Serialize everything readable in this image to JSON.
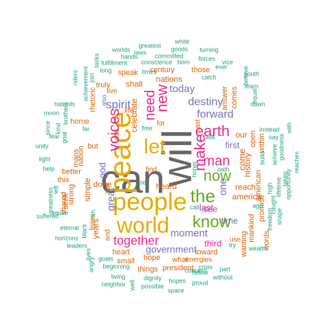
{
  "palette": {
    "green": "#1b9e77",
    "orange": "#d95f02",
    "purple": "#7570b3",
    "pink": "#e7298a",
    "lime": "#66a61e",
    "gold": "#e6ab02",
    "brown": "#a6761d",
    "gray": "#666666"
  },
  "words": [
    {
      "text": "can",
      "color": "gray"
    },
    {
      "text": "will",
      "color": "gray"
    },
    {
      "text": "peace",
      "color": "gold"
    },
    {
      "text": "people",
      "color": "gold"
    },
    {
      "text": "world",
      "color": "gold"
    },
    {
      "text": "let",
      "color": "gold"
    },
    {
      "text": "the",
      "color": "lime"
    },
    {
      "text": "know",
      "color": "lime"
    },
    {
      "text": "now",
      "color": "lime"
    },
    {
      "text": "earth",
      "color": "pink"
    },
    {
      "text": "make",
      "color": "pink"
    },
    {
      "text": "man",
      "color": "pink"
    },
    {
      "text": "voices",
      "color": "pink"
    },
    {
      "text": "new",
      "color": "pink"
    },
    {
      "text": "need",
      "color": "pink"
    },
    {
      "text": "together",
      "color": "pink"
    },
    {
      "text": "spirit",
      "color": "purple"
    },
    {
      "text": "forward",
      "color": "purple"
    },
    {
      "text": "destiny",
      "color": "purple"
    },
    {
      "text": "today",
      "color": "purple"
    },
    {
      "text": "moment",
      "color": "purple"
    },
    {
      "text": "government",
      "color": "purple"
    },
    {
      "text": "great",
      "color": "purple"
    },
    {
      "text": "first",
      "color": "purple"
    },
    {
      "text": "see",
      "color": "purple"
    },
    {
      "text": "time",
      "color": "purple"
    },
    {
      "text": "one",
      "color": "purple"
    },
    {
      "text": "god",
      "color": "purple"
    },
    {
      "text": "last",
      "color": "pink"
    },
    {
      "text": "third",
      "color": "pink"
    },
    {
      "text": "reach",
      "color": "orange"
    },
    {
      "text": "america",
      "color": "orange"
    },
    {
      "text": "come",
      "color": "orange"
    },
    {
      "text": "our",
      "color": "orange"
    },
    {
      "text": "history",
      "color": "orange"
    },
    {
      "text": "nations",
      "color": "orange"
    },
    {
      "text": "celebrate",
      "color": "orange"
    },
    {
      "text": "done",
      "color": "orange"
    },
    {
      "text": "simple",
      "color": "orange"
    },
    {
      "text": "heard",
      "color": "orange"
    },
    {
      "text": "years",
      "color": "orange"
    },
    {
      "text": "shall",
      "color": "orange"
    },
    {
      "text": "life",
      "color": "orange"
    },
    {
      "text": "heart",
      "color": "orange"
    },
    {
      "text": "small",
      "color": "orange"
    },
    {
      "text": "hope",
      "color": "orange"
    },
    {
      "text": "president",
      "color": "orange"
    },
    {
      "text": "things",
      "color": "orange"
    },
    {
      "text": "what",
      "color": "orange"
    },
    {
      "text": "toward",
      "color": "orange"
    },
    {
      "text": "wanting",
      "color": "orange"
    },
    {
      "text": "promise",
      "color": "orange"
    },
    {
      "text": "american",
      "color": "orange"
    },
    {
      "text": "words",
      "color": "orange"
    },
    {
      "text": "mankind",
      "color": "orange"
    },
    {
      "text": "open",
      "color": "orange"
    },
    {
      "text": "within",
      "color": "orange"
    },
    {
      "text": "answer",
      "color": "orange"
    },
    {
      "text": "comes",
      "color": "orange"
    },
    {
      "text": "those",
      "color": "orange"
    },
    {
      "text": "century",
      "color": "orange"
    },
    {
      "text": "speak",
      "color": "orange"
    },
    {
      "text": "truly",
      "color": "orange"
    },
    {
      "text": "live",
      "color": "orange"
    },
    {
      "text": "nation",
      "color": "orange"
    },
    {
      "text": "home",
      "color": "orange"
    },
    {
      "text": "but",
      "color": "orange"
    },
    {
      "text": "better",
      "color": "orange"
    },
    {
      "text": "this",
      "color": "orange"
    },
    {
      "text": "seek",
      "color": "orange"
    },
    {
      "text": "mans",
      "color": "orange"
    },
    {
      "text": "strong",
      "color": "orange"
    },
    {
      "text": "shared",
      "color": "orange"
    },
    {
      "text": "listen",
      "color": "orange"
    },
    {
      "text": "and",
      "color": "orange"
    },
    {
      "text": "for",
      "color": "orange"
    },
    {
      "text": "find",
      "color": "orange"
    },
    {
      "text": "war",
      "color": "orange"
    },
    {
      "text": "rhetoric",
      "color": "orange"
    },
    {
      "text": "past",
      "color": "orange"
    },
    {
      "text": "energies",
      "color": "orange"
    },
    {
      "text": "use",
      "color": "orange"
    },
    {
      "text": "worlds",
      "color": "green"
    },
    {
      "text": "greatest",
      "color": "green"
    },
    {
      "text": "white",
      "color": "green"
    },
    {
      "text": "goods",
      "color": "green"
    },
    {
      "text": "turning",
      "color": "green"
    },
    {
      "text": "riders",
      "color": "green"
    },
    {
      "text": "tasks",
      "color": "green"
    },
    {
      "text": "hands",
      "color": "green"
    },
    {
      "text": "laws",
      "color": "green"
    },
    {
      "text": "committed",
      "color": "green"
    },
    {
      "text": "forces",
      "color": "green"
    },
    {
      "text": "vice",
      "color": "green"
    },
    {
      "text": "join",
      "color": "green"
    },
    {
      "text": "fulfillment",
      "color": "green"
    },
    {
      "text": "conscience",
      "color": "green"
    },
    {
      "text": "born",
      "color": "green"
    },
    {
      "text": "ever",
      "color": "green"
    },
    {
      "text": "achievement",
      "color": "green"
    },
    {
      "text": "long",
      "color": "green"
    },
    {
      "text": "times",
      "color": "green"
    },
    {
      "text": "youth",
      "color": "green"
    },
    {
      "text": "hatreds",
      "color": "green"
    },
    {
      "text": "also",
      "color": "green"
    },
    {
      "text": "catch",
      "color": "green"
    },
    {
      "text": "equal",
      "color": "green"
    },
    {
      "text": "believe",
      "color": "green"
    },
    {
      "text": "learn",
      "color": "green"
    },
    {
      "text": "moon",
      "color": "green"
    },
    {
      "text": "brothers",
      "color": "green"
    },
    {
      "text": "rich",
      "color": "green"
    },
    {
      "text": "far",
      "color": "green"
    },
    {
      "text": "dawn",
      "color": "green"
    },
    {
      "text": "kind",
      "color": "green"
    },
    {
      "text": "since",
      "color": "green"
    },
    {
      "text": "free",
      "color": "green"
    },
    {
      "text": "instead",
      "color": "green"
    },
    {
      "text": "say",
      "color": "green"
    },
    {
      "text": "fear",
      "color": "green"
    },
    {
      "text": "goal",
      "color": "green"
    },
    {
      "text": "build",
      "color": "green"
    },
    {
      "text": "achieve",
      "color": "green"
    },
    {
      "text": "goodness",
      "color": "green"
    },
    {
      "text": "with",
      "color": "green"
    },
    {
      "text": "ask",
      "color": "green"
    },
    {
      "text": "oath",
      "color": "green"
    },
    {
      "text": "light",
      "color": "green"
    },
    {
      "text": "unity",
      "color": "green"
    },
    {
      "text": "help",
      "color": "green"
    },
    {
      "text": "taken",
      "color": "green"
    },
    {
      "text": "reaches",
      "color": "green"
    },
    {
      "text": "lifetime",
      "color": "green"
    },
    {
      "text": "honor",
      "color": "green"
    },
    {
      "text": "caught",
      "color": "green"
    },
    {
      "text": "greatness",
      "color": "green"
    },
    {
      "text": "set",
      "color": "green"
    },
    {
      "text": "high",
      "color": "green"
    },
    {
      "text": "opportunity",
      "color": "green"
    },
    {
      "text": "suffered",
      "color": "green"
    },
    {
      "text": "ago",
      "color": "green"
    },
    {
      "text": "freedom",
      "color": "green"
    },
    {
      "text": "shape",
      "color": "green"
    },
    {
      "text": "call",
      "color": "green"
    },
    {
      "text": "eternal",
      "color": "green"
    },
    {
      "text": "horizons",
      "color": "green"
    },
    {
      "text": "black",
      "color": "green"
    },
    {
      "text": "angry",
      "color": "green"
    },
    {
      "text": "leaders",
      "color": "green"
    },
    {
      "text": "try",
      "color": "green"
    },
    {
      "text": "wealth",
      "color": "green"
    },
    {
      "text": "lives",
      "color": "green"
    },
    {
      "text": "goals",
      "color": "green"
    },
    {
      "text": "beginning",
      "color": "green"
    },
    {
      "text": "living",
      "color": "green"
    },
    {
      "text": "neighbor",
      "color": "green"
    },
    {
      "text": "well",
      "color": "green"
    },
    {
      "text": "dignity",
      "color": "green"
    },
    {
      "text": "possible",
      "color": "green"
    },
    {
      "text": "concern",
      "color": "green"
    },
    {
      "text": "fellow",
      "color": "green"
    },
    {
      "text": "hopes",
      "color": "green"
    },
    {
      "text": "crisis",
      "color": "green"
    },
    {
      "text": "part",
      "color": "green"
    },
    {
      "text": "without",
      "color": "green"
    },
    {
      "text": "proud",
      "color": "green"
    },
    {
      "text": "space",
      "color": "green"
    },
    {
      "text": "cause",
      "color": "green"
    },
    {
      "text": "left",
      "color": "green"
    }
  ]
}
